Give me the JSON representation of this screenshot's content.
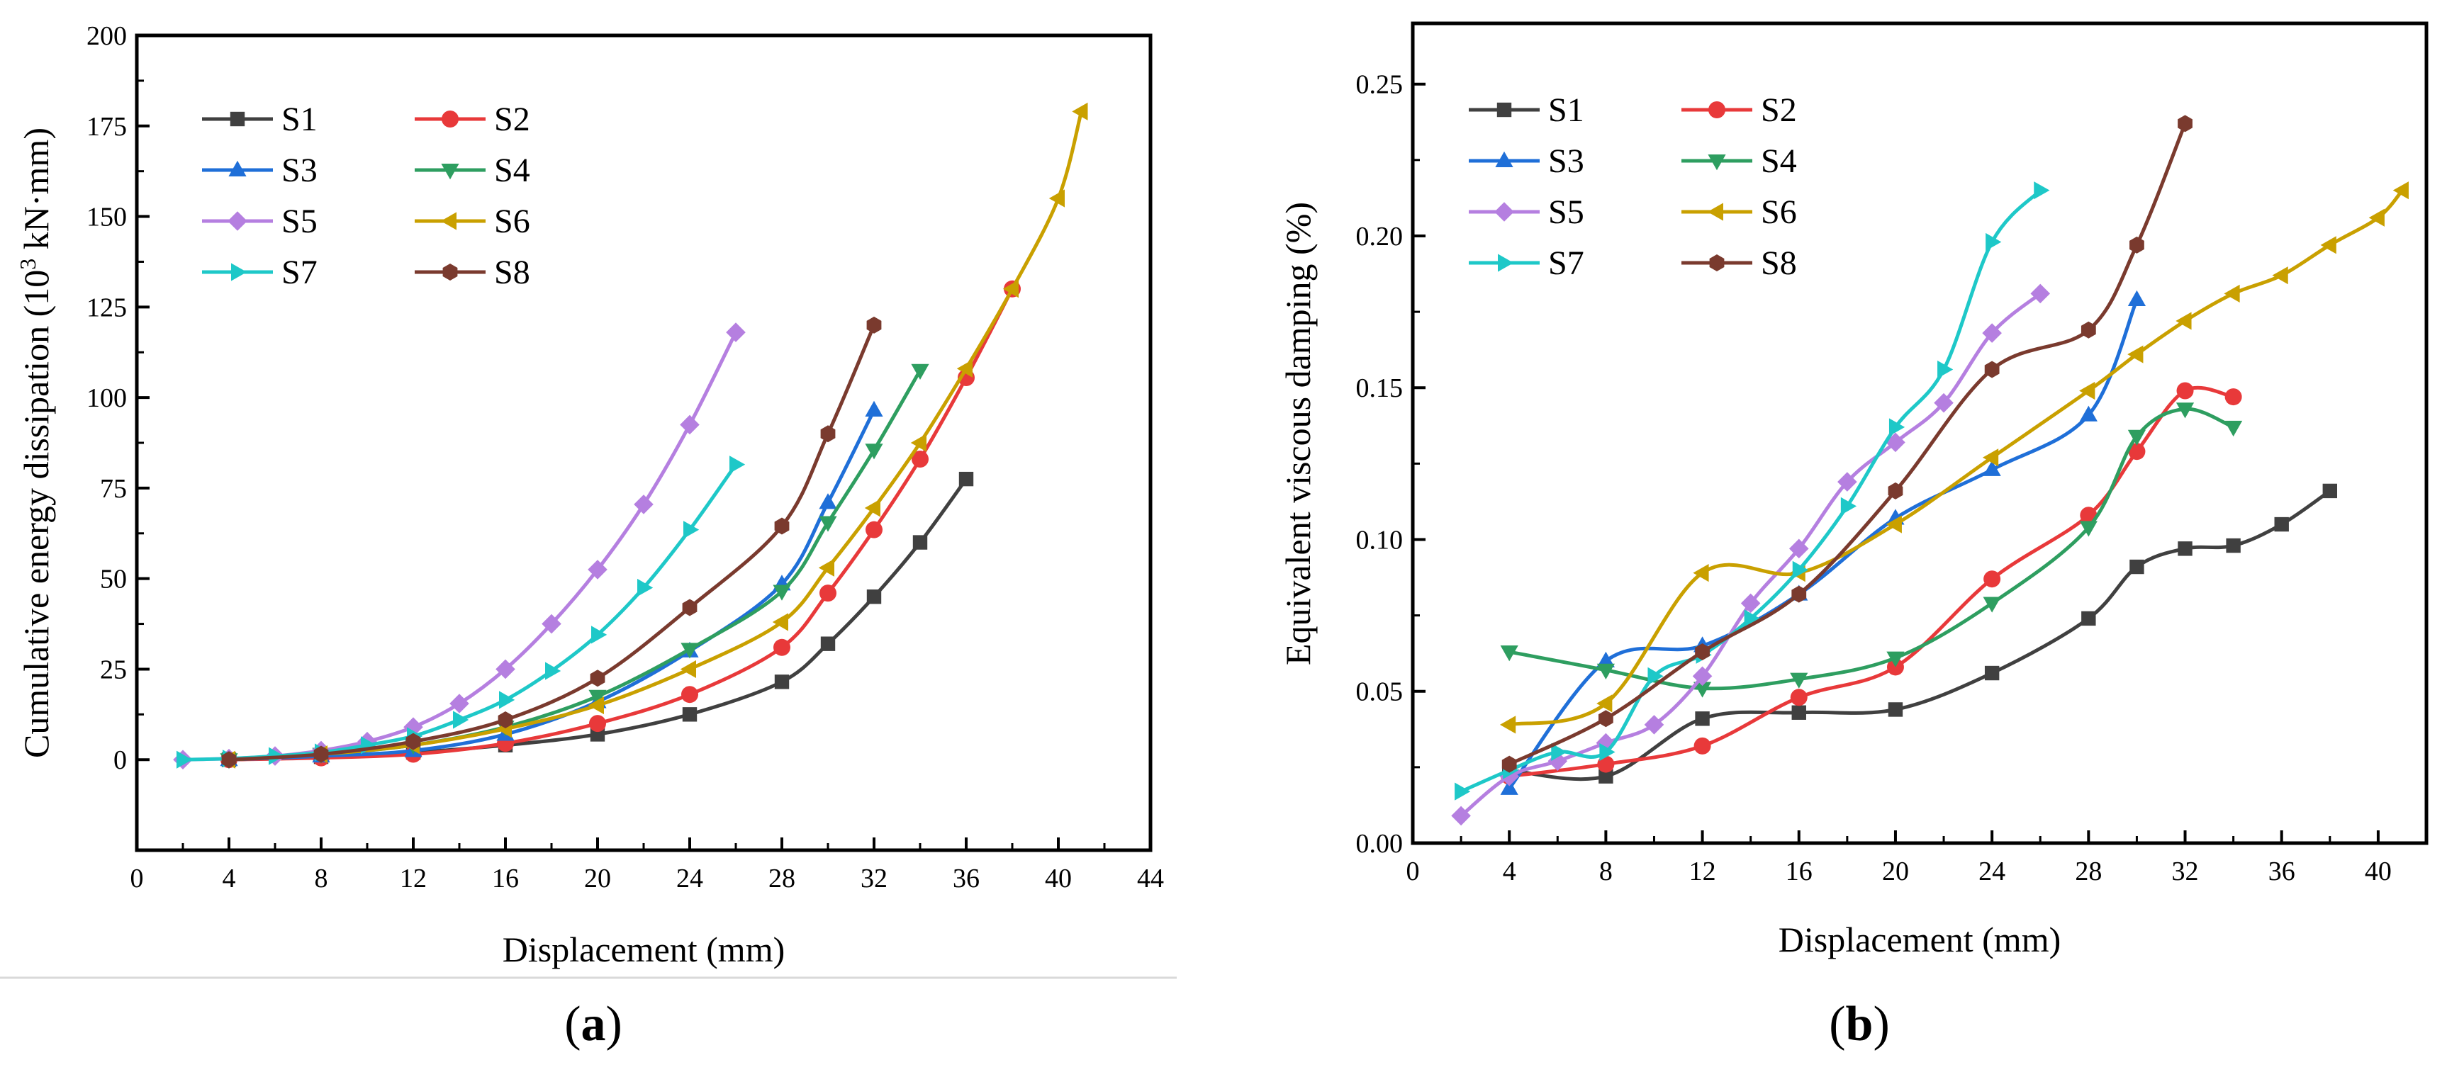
{
  "chart_data": [
    {
      "type": "line",
      "caption": "(a)",
      "caption_letter": "a",
      "xlabel": "Displacement (mm)",
      "ylabel": "Cumulative energy dissipation (10³ kN·mm)",
      "ylabel_parts": {
        "pre": "Cumulative energy dissipation (10",
        "sup": "3",
        "post": " kN·mm)"
      },
      "xlim": [
        0,
        44
      ],
      "ylim": [
        -25,
        200
      ],
      "xticks": [
        0,
        4,
        8,
        12,
        16,
        20,
        24,
        28,
        32,
        36,
        40,
        44
      ],
      "yticks": [
        0,
        25,
        50,
        75,
        100,
        125,
        150,
        175,
        200
      ],
      "legend": "top-left",
      "series": [
        {
          "name": "S1",
          "color": "#404040",
          "marker": "square",
          "x": [
            4,
            8,
            12,
            16,
            20,
            24,
            28,
            30,
            32,
            34,
            36
          ],
          "y": [
            0,
            0.8,
            2,
            4,
            7,
            12.5,
            21.5,
            32,
            45,
            60,
            77.5
          ]
        },
        {
          "name": "S2",
          "color": "#e8393a",
          "marker": "circle",
          "x": [
            4,
            8,
            12,
            16,
            20,
            24,
            28,
            30,
            32,
            34,
            36,
            38
          ],
          "y": [
            0,
            0.5,
            1.5,
            4.5,
            10,
            18,
            31,
            46,
            63.5,
            83,
            105.5,
            130
          ]
        },
        {
          "name": "S3",
          "color": "#1f6fd8",
          "marker": "triangle-up",
          "x": [
            4,
            8,
            12,
            16,
            20,
            24,
            28,
            30,
            32
          ],
          "y": [
            0,
            1,
            2.5,
            7,
            16,
            30,
            48.5,
            71,
            96.5
          ]
        },
        {
          "name": "S4",
          "color": "#2e9e60",
          "marker": "triangle-down",
          "x": [
            4,
            8,
            12,
            16,
            20,
            24,
            28,
            30,
            32,
            34
          ],
          "y": [
            0,
            1.5,
            4,
            9,
            17.5,
            30.5,
            46.5,
            65.5,
            85.5,
            107.5
          ]
        },
        {
          "name": "S5",
          "color": "#b57fe0",
          "marker": "diamond",
          "x": [
            2,
            4,
            6,
            8,
            10,
            12,
            14,
            16,
            18,
            20,
            22,
            24,
            26
          ],
          "y": [
            0,
            0.3,
            1,
            2.5,
            5,
            9,
            15.5,
            25,
            37.5,
            52.5,
            70.5,
            92.5,
            118
          ]
        },
        {
          "name": "S6",
          "color": "#c9a000",
          "marker": "triangle-left",
          "x": [
            4,
            8,
            12,
            16,
            20,
            24,
            28,
            30,
            32,
            34,
            36,
            38,
            40,
            41
          ],
          "y": [
            0,
            1.5,
            4,
            8.5,
            15,
            25,
            38,
            53,
            69.5,
            87.5,
            108,
            130,
            155,
            179
          ]
        },
        {
          "name": "S7",
          "color": "#1ec8c8",
          "marker": "triangle-right",
          "x": [
            2,
            4,
            6,
            8,
            10,
            12,
            14,
            16,
            18,
            20,
            22,
            24,
            26
          ],
          "y": [
            0,
            0.3,
            1,
            2,
            4,
            6.5,
            11,
            16.5,
            24.5,
            34.5,
            47.5,
            63.5,
            81.5
          ]
        },
        {
          "name": "S8",
          "color": "#7a3a2e",
          "marker": "hexagon",
          "x": [
            4,
            8,
            12,
            16,
            20,
            24,
            28,
            30,
            32
          ],
          "y": [
            0,
            1.5,
            5,
            11,
            22.5,
            42,
            64.5,
            90,
            120
          ]
        }
      ]
    },
    {
      "type": "line",
      "caption": "(b)",
      "caption_letter": "b",
      "xlabel": "Displacement (mm)",
      "ylabel": "Equivalent viscous damping (%)",
      "xlim": [
        0,
        42
      ],
      "ylim": [
        0,
        0.27
      ],
      "xticks": [
        0,
        4,
        8,
        12,
        16,
        20,
        24,
        28,
        32,
        36,
        40
      ],
      "yticks": [
        0.0,
        0.05,
        0.1,
        0.15,
        0.2,
        0.25
      ],
      "ytick_labels": [
        "0.00",
        "0.05",
        "0.10",
        "0.15",
        "0.20",
        "0.25"
      ],
      "legend": "top-left",
      "series": [
        {
          "name": "S1",
          "color": "#404040",
          "marker": "square",
          "x": [
            4,
            8,
            12,
            16,
            20,
            24,
            28,
            30,
            32,
            34,
            36,
            38
          ],
          "y": [
            0.024,
            0.022,
            0.041,
            0.043,
            0.044,
            0.056,
            0.074,
            0.091,
            0.097,
            0.098,
            0.105,
            0.116
          ]
        },
        {
          "name": "S2",
          "color": "#e8393a",
          "marker": "circle",
          "x": [
            4,
            8,
            12,
            16,
            20,
            24,
            28,
            30,
            32,
            34
          ],
          "y": [
            0.022,
            0.026,
            0.032,
            0.048,
            0.058,
            0.087,
            0.108,
            0.129,
            0.149,
            0.147
          ]
        },
        {
          "name": "S3",
          "color": "#1f6fd8",
          "marker": "triangle-up",
          "x": [
            4,
            8,
            12,
            16,
            20,
            24,
            28,
            30
          ],
          "y": [
            0.018,
            0.06,
            0.065,
            0.082,
            0.107,
            0.123,
            0.141,
            0.179
          ]
        },
        {
          "name": "S4",
          "color": "#2e9e60",
          "marker": "triangle-down",
          "x": [
            4,
            8,
            12,
            16,
            20,
            24,
            28,
            30,
            32,
            34
          ],
          "y": [
            0.063,
            0.057,
            0.051,
            0.054,
            0.061,
            0.079,
            0.104,
            0.134,
            0.143,
            0.137
          ]
        },
        {
          "name": "S5",
          "color": "#b57fe0",
          "marker": "diamond",
          "x": [
            2,
            4,
            6,
            8,
            10,
            12,
            14,
            16,
            18,
            20,
            22,
            24,
            26
          ],
          "y": [
            0.009,
            0.022,
            0.027,
            0.033,
            0.039,
            0.055,
            0.079,
            0.097,
            0.119,
            0.132,
            0.145,
            0.168,
            0.181
          ]
        },
        {
          "name": "S6",
          "color": "#c9a000",
          "marker": "triangle-left",
          "x": [
            4,
            8,
            12,
            16,
            20,
            24,
            28,
            30,
            32,
            34,
            36,
            38,
            40,
            41
          ],
          "y": [
            0.039,
            0.046,
            0.089,
            0.089,
            0.105,
            0.127,
            0.149,
            0.161,
            0.172,
            0.181,
            0.187,
            0.197,
            0.206,
            0.215
          ]
        },
        {
          "name": "S7",
          "color": "#1ec8c8",
          "marker": "triangle-right",
          "x": [
            2,
            4,
            6,
            8,
            10,
            12,
            14,
            16,
            18,
            20,
            22,
            24,
            26
          ],
          "y": [
            0.017,
            0.024,
            0.03,
            0.03,
            0.055,
            0.062,
            0.074,
            0.09,
            0.111,
            0.137,
            0.156,
            0.198,
            0.215
          ]
        },
        {
          "name": "S8",
          "color": "#7a3a2e",
          "marker": "hexagon",
          "x": [
            4,
            8,
            12,
            16,
            20,
            24,
            28,
            30,
            32
          ],
          "y": [
            0.026,
            0.041,
            0.063,
            0.082,
            0.116,
            0.156,
            0.169,
            0.197,
            0.237
          ]
        }
      ]
    }
  ]
}
